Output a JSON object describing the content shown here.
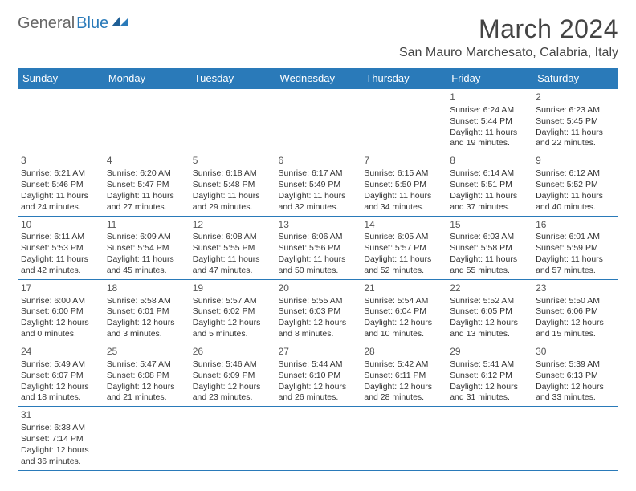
{
  "logo": {
    "general": "General",
    "blue": "Blue"
  },
  "title": "March 2024",
  "location": "San Mauro Marchesato, Calabria, Italy",
  "dayHeaders": [
    "Sunday",
    "Monday",
    "Tuesday",
    "Wednesday",
    "Thursday",
    "Friday",
    "Saturday"
  ],
  "colors": {
    "headerBg": "#2a7ab9",
    "headerText": "#ffffff",
    "cellBorder": "#2a7ab9",
    "text": "#333333",
    "logoGray": "#666666",
    "logoBlue": "#2a7ab9"
  },
  "weeks": [
    [
      null,
      null,
      null,
      null,
      null,
      {
        "n": "1",
        "sunrise": "Sunrise: 6:24 AM",
        "sunset": "Sunset: 5:44 PM",
        "daylight": "Daylight: 11 hours and 19 minutes."
      },
      {
        "n": "2",
        "sunrise": "Sunrise: 6:23 AM",
        "sunset": "Sunset: 5:45 PM",
        "daylight": "Daylight: 11 hours and 22 minutes."
      }
    ],
    [
      {
        "n": "3",
        "sunrise": "Sunrise: 6:21 AM",
        "sunset": "Sunset: 5:46 PM",
        "daylight": "Daylight: 11 hours and 24 minutes."
      },
      {
        "n": "4",
        "sunrise": "Sunrise: 6:20 AM",
        "sunset": "Sunset: 5:47 PM",
        "daylight": "Daylight: 11 hours and 27 minutes."
      },
      {
        "n": "5",
        "sunrise": "Sunrise: 6:18 AM",
        "sunset": "Sunset: 5:48 PM",
        "daylight": "Daylight: 11 hours and 29 minutes."
      },
      {
        "n": "6",
        "sunrise": "Sunrise: 6:17 AM",
        "sunset": "Sunset: 5:49 PM",
        "daylight": "Daylight: 11 hours and 32 minutes."
      },
      {
        "n": "7",
        "sunrise": "Sunrise: 6:15 AM",
        "sunset": "Sunset: 5:50 PM",
        "daylight": "Daylight: 11 hours and 34 minutes."
      },
      {
        "n": "8",
        "sunrise": "Sunrise: 6:14 AM",
        "sunset": "Sunset: 5:51 PM",
        "daylight": "Daylight: 11 hours and 37 minutes."
      },
      {
        "n": "9",
        "sunrise": "Sunrise: 6:12 AM",
        "sunset": "Sunset: 5:52 PM",
        "daylight": "Daylight: 11 hours and 40 minutes."
      }
    ],
    [
      {
        "n": "10",
        "sunrise": "Sunrise: 6:11 AM",
        "sunset": "Sunset: 5:53 PM",
        "daylight": "Daylight: 11 hours and 42 minutes."
      },
      {
        "n": "11",
        "sunrise": "Sunrise: 6:09 AM",
        "sunset": "Sunset: 5:54 PM",
        "daylight": "Daylight: 11 hours and 45 minutes."
      },
      {
        "n": "12",
        "sunrise": "Sunrise: 6:08 AM",
        "sunset": "Sunset: 5:55 PM",
        "daylight": "Daylight: 11 hours and 47 minutes."
      },
      {
        "n": "13",
        "sunrise": "Sunrise: 6:06 AM",
        "sunset": "Sunset: 5:56 PM",
        "daylight": "Daylight: 11 hours and 50 minutes."
      },
      {
        "n": "14",
        "sunrise": "Sunrise: 6:05 AM",
        "sunset": "Sunset: 5:57 PM",
        "daylight": "Daylight: 11 hours and 52 minutes."
      },
      {
        "n": "15",
        "sunrise": "Sunrise: 6:03 AM",
        "sunset": "Sunset: 5:58 PM",
        "daylight": "Daylight: 11 hours and 55 minutes."
      },
      {
        "n": "16",
        "sunrise": "Sunrise: 6:01 AM",
        "sunset": "Sunset: 5:59 PM",
        "daylight": "Daylight: 11 hours and 57 minutes."
      }
    ],
    [
      {
        "n": "17",
        "sunrise": "Sunrise: 6:00 AM",
        "sunset": "Sunset: 6:00 PM",
        "daylight": "Daylight: 12 hours and 0 minutes."
      },
      {
        "n": "18",
        "sunrise": "Sunrise: 5:58 AM",
        "sunset": "Sunset: 6:01 PM",
        "daylight": "Daylight: 12 hours and 3 minutes."
      },
      {
        "n": "19",
        "sunrise": "Sunrise: 5:57 AM",
        "sunset": "Sunset: 6:02 PM",
        "daylight": "Daylight: 12 hours and 5 minutes."
      },
      {
        "n": "20",
        "sunrise": "Sunrise: 5:55 AM",
        "sunset": "Sunset: 6:03 PM",
        "daylight": "Daylight: 12 hours and 8 minutes."
      },
      {
        "n": "21",
        "sunrise": "Sunrise: 5:54 AM",
        "sunset": "Sunset: 6:04 PM",
        "daylight": "Daylight: 12 hours and 10 minutes."
      },
      {
        "n": "22",
        "sunrise": "Sunrise: 5:52 AM",
        "sunset": "Sunset: 6:05 PM",
        "daylight": "Daylight: 12 hours and 13 minutes."
      },
      {
        "n": "23",
        "sunrise": "Sunrise: 5:50 AM",
        "sunset": "Sunset: 6:06 PM",
        "daylight": "Daylight: 12 hours and 15 minutes."
      }
    ],
    [
      {
        "n": "24",
        "sunrise": "Sunrise: 5:49 AM",
        "sunset": "Sunset: 6:07 PM",
        "daylight": "Daylight: 12 hours and 18 minutes."
      },
      {
        "n": "25",
        "sunrise": "Sunrise: 5:47 AM",
        "sunset": "Sunset: 6:08 PM",
        "daylight": "Daylight: 12 hours and 21 minutes."
      },
      {
        "n": "26",
        "sunrise": "Sunrise: 5:46 AM",
        "sunset": "Sunset: 6:09 PM",
        "daylight": "Daylight: 12 hours and 23 minutes."
      },
      {
        "n": "27",
        "sunrise": "Sunrise: 5:44 AM",
        "sunset": "Sunset: 6:10 PM",
        "daylight": "Daylight: 12 hours and 26 minutes."
      },
      {
        "n": "28",
        "sunrise": "Sunrise: 5:42 AM",
        "sunset": "Sunset: 6:11 PM",
        "daylight": "Daylight: 12 hours and 28 minutes."
      },
      {
        "n": "29",
        "sunrise": "Sunrise: 5:41 AM",
        "sunset": "Sunset: 6:12 PM",
        "daylight": "Daylight: 12 hours and 31 minutes."
      },
      {
        "n": "30",
        "sunrise": "Sunrise: 5:39 AM",
        "sunset": "Sunset: 6:13 PM",
        "daylight": "Daylight: 12 hours and 33 minutes."
      }
    ],
    [
      {
        "n": "31",
        "sunrise": "Sunrise: 6:38 AM",
        "sunset": "Sunset: 7:14 PM",
        "daylight": "Daylight: 12 hours and 36 minutes."
      },
      null,
      null,
      null,
      null,
      null,
      null
    ]
  ]
}
